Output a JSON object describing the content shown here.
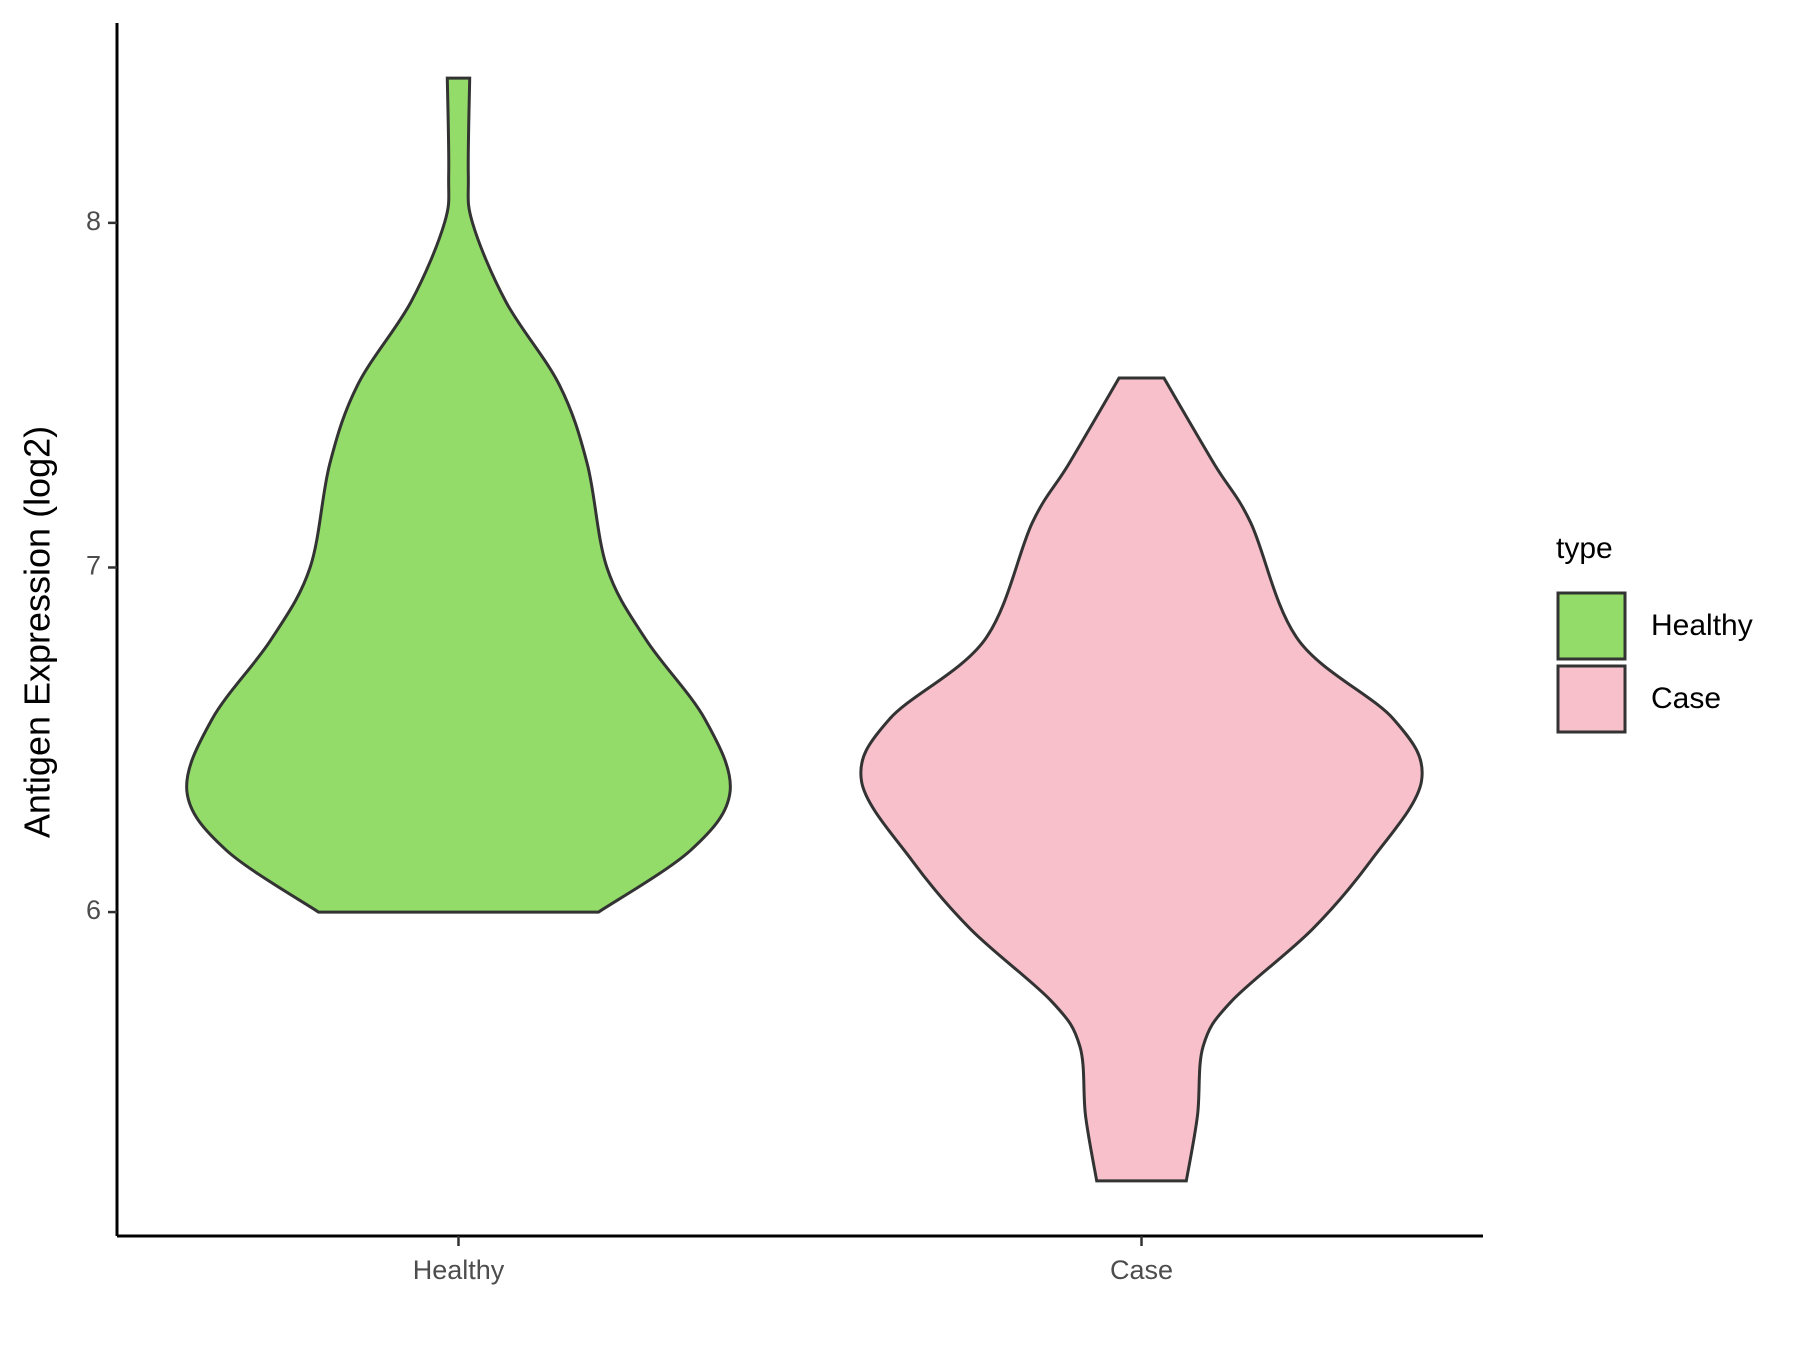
{
  "chart_data": {
    "type": "violin",
    "y_label": "Antigen Expression (log2)",
    "legend_title": "type",
    "categories": [
      "Healthy",
      "Case"
    ],
    "series": [
      {
        "name": "Healthy",
        "color": "#93dc6a",
        "y": [
          8.42,
          8.14,
          8.0,
          7.77,
          7.53,
          7.3,
          7.0,
          6.79,
          6.56,
          6.35,
          6.18,
          6.0
        ],
        "density": [
          0.04,
          0.035,
          0.05,
          0.17,
          0.36,
          0.46,
          0.53,
          0.67,
          0.88,
          0.97,
          0.83,
          0.5
        ]
      },
      {
        "name": "Case",
        "color": "#f7c0cb",
        "y": [
          7.55,
          7.3,
          7.13,
          6.79,
          6.56,
          6.38,
          6.15,
          5.95,
          5.74,
          5.61,
          5.41,
          5.22
        ],
        "density": [
          0.08,
          0.26,
          0.39,
          0.56,
          0.9,
          1.0,
          0.82,
          0.61,
          0.32,
          0.22,
          0.2,
          0.16
        ]
      }
    ],
    "ylim": [
      5.06,
      8.58
    ],
    "yticks": [
      6,
      7,
      8
    ]
  }
}
